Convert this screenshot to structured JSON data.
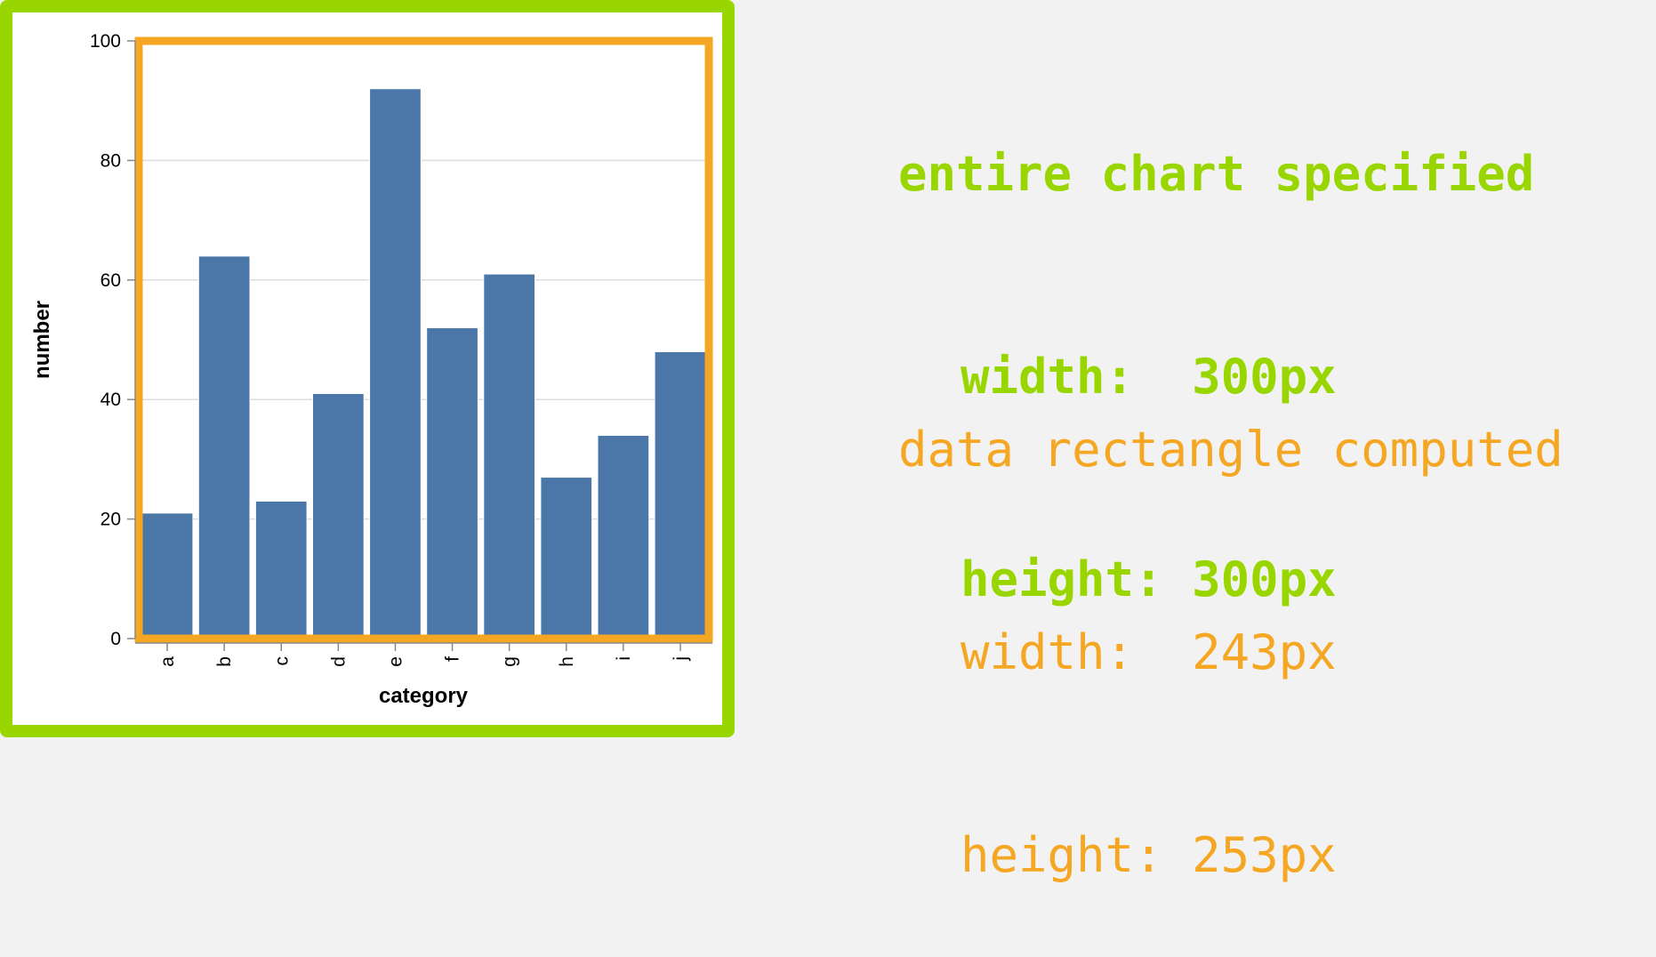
{
  "chart_data": {
    "type": "bar",
    "categories": [
      "a",
      "b",
      "c",
      "d",
      "e",
      "f",
      "g",
      "h",
      "i",
      "j"
    ],
    "values": [
      21,
      64,
      23,
      41,
      92,
      52,
      61,
      27,
      34,
      48
    ],
    "xlabel": "category",
    "ylabel": "number",
    "ylim": [
      0,
      100
    ],
    "yticks": [
      0,
      20,
      40,
      60,
      80,
      100
    ],
    "grid": true,
    "bar_color": "#4a76a8"
  },
  "annotations": {
    "specified": {
      "heading": "entire chart specified",
      "width_line": "width:  300px",
      "height_line": "height: 300px",
      "color": "#99d600"
    },
    "computed": {
      "heading": "data rectangle computed",
      "width_line": "width:  243px",
      "height_line": "height: 253px",
      "color": "#f5a623"
    }
  }
}
